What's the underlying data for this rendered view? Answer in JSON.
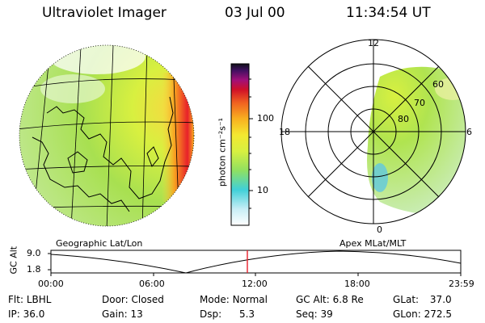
{
  "header": {
    "instrument": "Ultraviolet Imager",
    "date": "03 Jul 00",
    "time": "11:34:54 UT"
  },
  "colorbar": {
    "unit_label": "photon cm⁻²s⁻¹",
    "ticks": [
      "100",
      "10"
    ]
  },
  "left_image": {
    "caption": "Geographic Lat/Lon"
  },
  "right_image": {
    "caption": "Apex MLat/MLT",
    "mlt_labels": [
      "12",
      "18",
      "6",
      "0"
    ],
    "mlat_labels": [
      "60",
      "70",
      "80"
    ]
  },
  "altitude_plot": {
    "ylabel": "GC Alt",
    "yticks": [
      "9.0",
      "1.8"
    ],
    "xticks": [
      "00:00",
      "06:00",
      "12:00",
      "18:00",
      "23:59"
    ]
  },
  "info": {
    "flt_label": "Flt:",
    "flt_value": "LBHL",
    "ip_label": "IP:",
    "ip_value": "36.0",
    "door_label": "Door:",
    "door_value": "Closed",
    "gain_label": "Gain:",
    "gain_value": "13",
    "mode_label": "Mode:",
    "mode_value": "Normal",
    "dsp_label": "Dsp:",
    "dsp_value": "5.3",
    "gcalt_label": "GC Alt:",
    "gcalt_value": "6.8 Re",
    "seq_label": "Seq:",
    "seq_value": "39",
    "glat_label": "GLat:",
    "glat_value": "37.0",
    "glon_label": "GLon:",
    "glon_value": "272.5"
  },
  "colors": {
    "marker": "#e8202a",
    "glow": "#e8202a"
  }
}
